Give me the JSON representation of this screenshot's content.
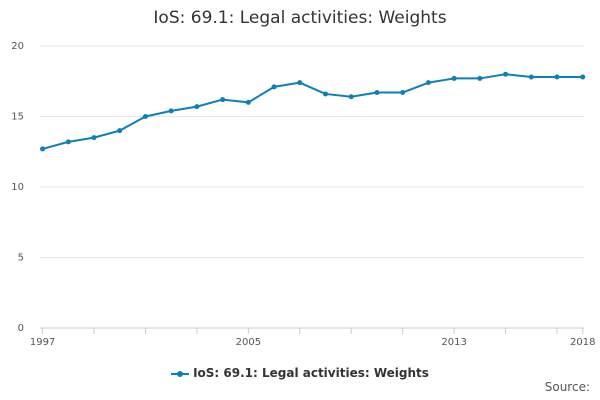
{
  "chart_data": {
    "type": "line",
    "title": "IoS: 69.1: Legal activities: Weights",
    "xlabel": "",
    "ylabel": "",
    "x": [
      1997,
      1998,
      1999,
      2000,
      2001,
      2002,
      2003,
      2004,
      2005,
      2006,
      2007,
      2008,
      2009,
      2010,
      2011,
      2012,
      2013,
      2014,
      2015,
      2016,
      2017,
      2018
    ],
    "series": [
      {
        "name": "IoS: 69.1: Legal activities: Weights",
        "values": [
          12.7,
          13.2,
          13.5,
          14.0,
          15.0,
          15.4,
          15.7,
          16.2,
          16.0,
          17.1,
          17.4,
          16.6,
          16.4,
          16.7,
          16.7,
          17.4,
          17.7,
          17.7,
          18.0,
          17.8,
          17.8,
          17.8
        ],
        "color": "#0e7fb7"
      }
    ],
    "ylim": [
      0,
      20
    ],
    "yticks": [
      0,
      5,
      10,
      15,
      20
    ],
    "xtick_labels": [
      "1997",
      "2005",
      "2013",
      "2018"
    ],
    "grid": true,
    "legend": "bottom-center",
    "source_label": "Source:"
  }
}
